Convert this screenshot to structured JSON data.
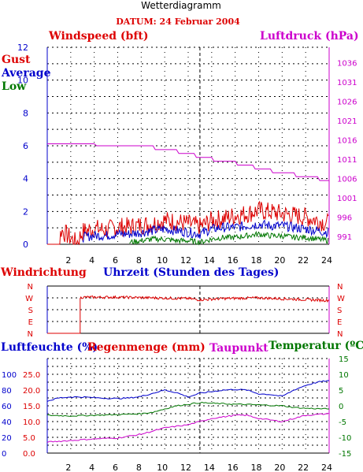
{
  "header": {
    "title": "Wetterdiagramm",
    "date_label": "DATUM: 24 Februar 2004"
  },
  "colors": {
    "red": "#dd0000",
    "blue": "#0000cc",
    "green": "#007700",
    "magenta": "#cc00cc",
    "grid": "#000000"
  },
  "chart_data": [
    {
      "type": "line",
      "name": "wind-pressure",
      "left_title": "Windspeed (bft)",
      "right_title": "Luftdruck (hPa)",
      "legend": [
        "Gust",
        "Average",
        "Low"
      ],
      "x_ticks": [
        2,
        4,
        6,
        8,
        10,
        12,
        14,
        16,
        18,
        20,
        22,
        24
      ],
      "xlim": [
        0,
        24
      ],
      "ylim_left": [
        0,
        12
      ],
      "y_ticks_left": [
        0,
        2,
        4,
        6,
        8,
        10,
        12
      ],
      "ylim_right": [
        989,
        1040
      ],
      "y_ticks_right": [
        991,
        996,
        1001,
        1006,
        1011,
        1016,
        1021,
        1026,
        1031,
        1036
      ],
      "series_wind": [
        {
          "name": "Gust",
          "color": "#dd0000",
          "x": [
            0,
            1,
            1.2,
            2.5,
            3,
            4,
            5,
            6,
            7,
            8,
            9,
            10,
            11,
            12,
            13,
            14,
            15,
            16,
            17,
            18,
            19,
            20,
            21,
            22,
            23,
            24
          ],
          "y": [
            0,
            0,
            0.8,
            0,
            0.7,
            0.9,
            0.8,
            1.0,
            1.0,
            1.1,
            1.2,
            1.4,
            1.3,
            1.2,
            1.0,
            1.4,
            1.5,
            1.7,
            1.8,
            2.0,
            1.9,
            1.8,
            1.7,
            1.6,
            1.4,
            1.2
          ]
        },
        {
          "name": "Average",
          "color": "#0000cc",
          "x": [
            3,
            4,
            5,
            6,
            7,
            8,
            9,
            10,
            11,
            12,
            13,
            14,
            15,
            16,
            17,
            18,
            19,
            20,
            21,
            22,
            23,
            24
          ],
          "y": [
            0.4,
            0.5,
            0.5,
            0.6,
            0.6,
            0.7,
            0.8,
            0.9,
            0.8,
            0.7,
            0.6,
            0.9,
            1.0,
            1.0,
            1.1,
            1.2,
            1.1,
            1.1,
            1.0,
            0.9,
            0.8,
            0.7
          ]
        },
        {
          "name": "Low",
          "color": "#007700",
          "x": [
            7,
            8,
            9,
            10,
            11,
            12,
            13,
            14,
            15,
            16,
            17,
            18,
            19,
            20,
            21,
            22,
            23,
            24
          ],
          "y": [
            0.1,
            0.2,
            0.3,
            0.3,
            0.2,
            0.2,
            0.1,
            0.3,
            0.4,
            0.4,
            0.5,
            0.6,
            0.5,
            0.5,
            0.4,
            0.4,
            0.3,
            0.2
          ]
        }
      ],
      "series_pressure": {
        "name": "Luftdruck",
        "color": "#cc00cc",
        "x": [
          0,
          4,
          4.2,
          9,
          9.2,
          11,
          11.2,
          12.5,
          12.7,
          14,
          14.2,
          16,
          16.2,
          17.5,
          17.7,
          19,
          19.2,
          21,
          21.2,
          23,
          23.2,
          24
        ],
        "y": [
          1015,
          1015,
          1014.5,
          1014.5,
          1013.5,
          1013.5,
          1012.5,
          1012.5,
          1011.5,
          1011.5,
          1010.5,
          1010.5,
          1009.5,
          1009.5,
          1008.5,
          1008.5,
          1007.5,
          1007.5,
          1006.5,
          1006.5,
          1005.5,
          1005.5
        ]
      }
    },
    {
      "type": "line",
      "name": "wind-direction",
      "left_title": "Windrichtung",
      "x_title": "Uhrzeit (Stunden des Tages)",
      "y_ticks": [
        "N",
        "W",
        "S",
        "E",
        "N"
      ],
      "series": [
        {
          "name": "Windrichtung",
          "color": "#dd0000",
          "x": [
            0,
            2.8,
            2.8,
            3,
            6,
            9,
            12,
            13,
            15,
            18,
            21,
            24
          ],
          "y": [
            0,
            0,
            270,
            275,
            275,
            270,
            265,
            255,
            265,
            270,
            260,
            250
          ]
        }
      ]
    },
    {
      "type": "line",
      "name": "humidity-temp",
      "left_title_humidity": "Luftfeuchte (%)",
      "left_title_rain": "Regenmenge (mm)",
      "right_title_dew": "Taupunkt",
      "right_title_temp": "Temperatur (ºC)",
      "x_ticks": [
        2,
        4,
        6,
        8,
        10,
        12,
        14,
        16,
        18,
        20,
        22,
        24
      ],
      "humidity_ticks": [
        0,
        20,
        40,
        60,
        80,
        100
      ],
      "rain_ticks": [
        "0.0",
        "5.0",
        "10.0",
        "15.0",
        "20.0",
        "25.0"
      ],
      "temp_ticks": [
        -15,
        -10,
        -5,
        0,
        5,
        10,
        15
      ],
      "temp_lim": [
        -15,
        15
      ],
      "series": [
        {
          "name": "Luftfeuchte",
          "color": "#0000cc",
          "axis": "temp",
          "x": [
            0,
            1,
            2,
            3,
            4,
            5,
            6,
            7,
            8,
            9,
            10,
            11,
            12,
            13,
            14,
            15,
            16,
            17,
            18,
            19,
            20,
            21,
            22,
            23,
            24
          ],
          "y": [
            1.5,
            2.5,
            2.8,
            2.8,
            2.6,
            2.4,
            2.3,
            2.5,
            3.0,
            4.0,
            5.0,
            4.2,
            2.8,
            4.0,
            4.5,
            5.0,
            5.2,
            5.0,
            3.8,
            3.6,
            3.0,
            5.0,
            6.5,
            7.5,
            8.0
          ]
        },
        {
          "name": "Temperatur",
          "color": "#007700",
          "axis": "temp",
          "x": [
            0,
            2,
            4,
            6,
            8,
            9,
            10,
            11,
            12,
            13,
            14,
            16,
            18,
            20,
            21,
            22,
            24
          ],
          "y": [
            -3.0,
            -3.2,
            -3.0,
            -2.8,
            -2.5,
            -2.0,
            -1.0,
            0.0,
            0.5,
            1.0,
            0.8,
            0.5,
            0.3,
            0.0,
            -0.5,
            -0.8,
            -1.0
          ]
        },
        {
          "name": "Taupunkt",
          "color": "#cc00cc",
          "axis": "temp",
          "x": [
            0,
            2,
            4,
            6,
            8,
            9,
            10,
            12,
            13,
            14,
            15,
            16,
            17,
            18,
            19,
            20,
            21,
            22,
            24
          ],
          "y": [
            -11.5,
            -11.0,
            -10.5,
            -10.2,
            -9.0,
            -8.0,
            -7.0,
            -6.0,
            -5.0,
            -4.0,
            -3.5,
            -3.0,
            -3.0,
            -4.0,
            -4.5,
            -5.0,
            -4.0,
            -3.0,
            -2.5
          ]
        }
      ]
    }
  ]
}
